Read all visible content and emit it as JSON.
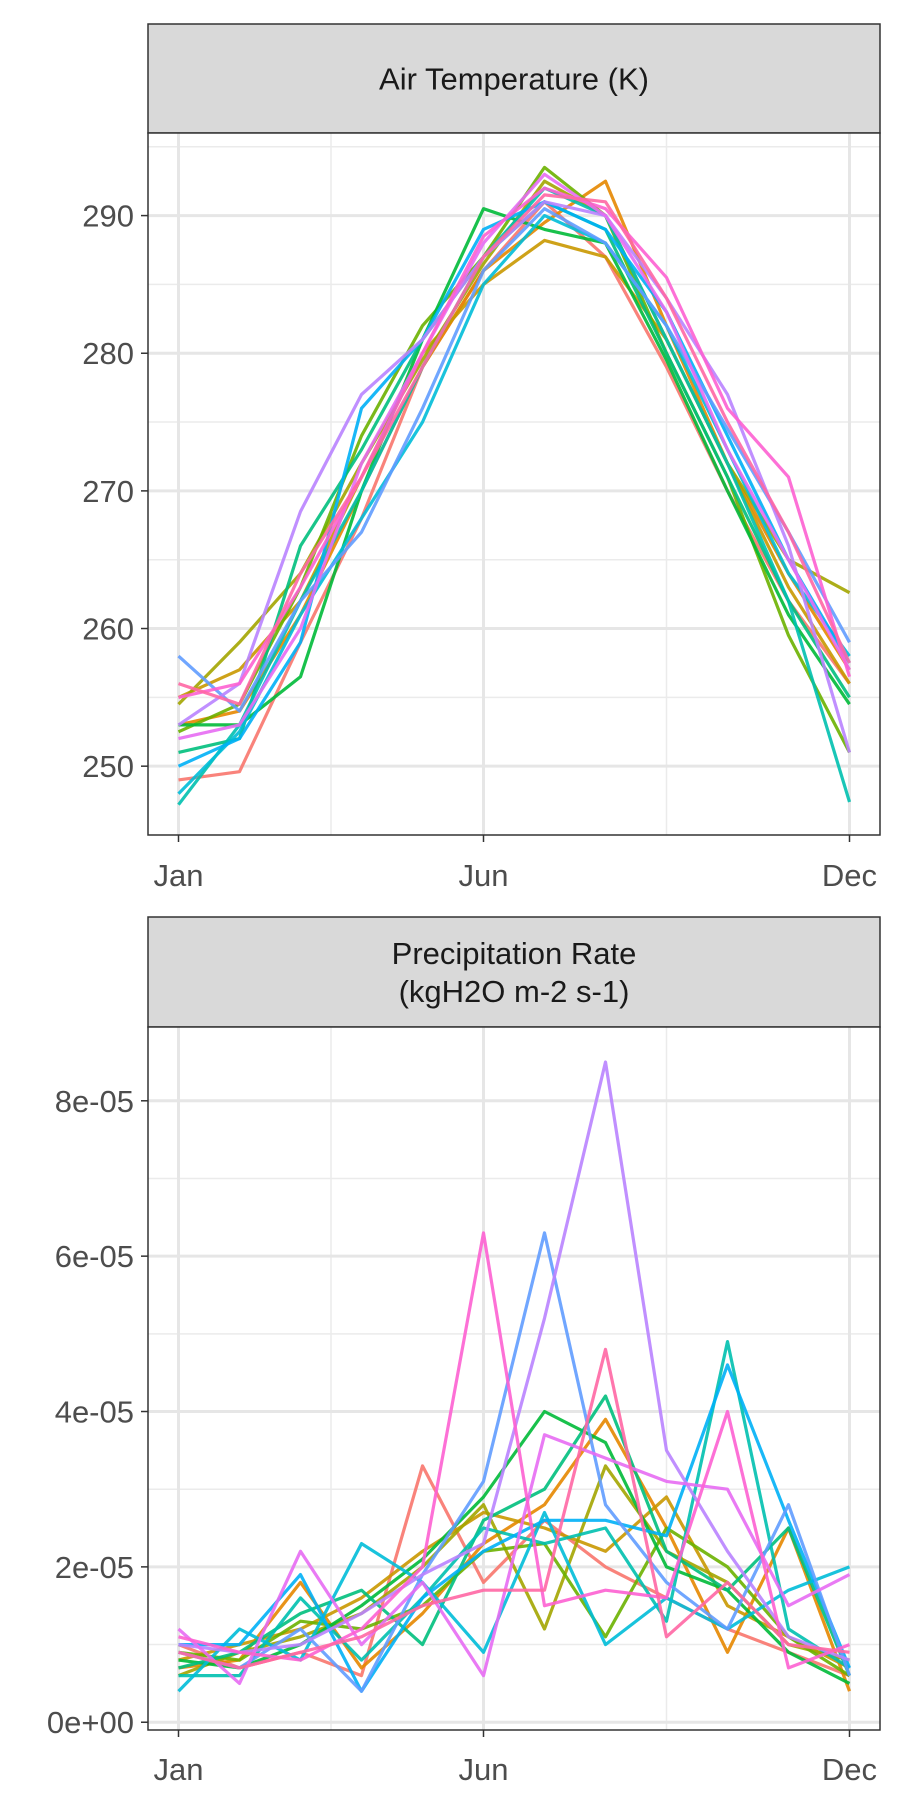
{
  "chart_data": [
    {
      "type": "line",
      "title": "Air Temperature (K)",
      "x": [
        1,
        2,
        3,
        4,
        5,
        6,
        7,
        8,
        9,
        10,
        11,
        12
      ],
      "x_ticks": [
        1,
        6,
        12
      ],
      "x_tick_labels": [
        "Jan",
        "Jun",
        "Dec"
      ],
      "xlim": [
        0.5,
        12.5
      ],
      "ylim": [
        245,
        296
      ],
      "y_ticks": [
        250,
        260,
        270,
        280,
        290
      ],
      "y_tick_labels": [
        "250",
        "260",
        "270",
        "280",
        "290"
      ],
      "grid": true,
      "legend": "none",
      "series": [
        {
          "color": "#F8766D",
          "values": [
            249.0,
            249.6,
            259.0,
            268.0,
            279.0,
            286.0,
            291.0,
            287.0,
            279.0,
            270.0,
            262.0,
            256.0
          ]
        },
        {
          "color": "#E58700",
          "values": [
            253.0,
            254.0,
            261.0,
            270.0,
            279.0,
            286.0,
            289.5,
            292.5,
            282.0,
            272.0,
            264.0,
            257.0
          ]
        },
        {
          "color": "#C99800",
          "values": [
            255.0,
            257.0,
            262.0,
            271.0,
            280.0,
            285.0,
            288.2,
            287.0,
            281.0,
            272.0,
            263.0,
            256.0
          ]
        },
        {
          "color": "#A3A500",
          "values": [
            254.5,
            259.0,
            264.0,
            272.0,
            279.5,
            286.5,
            292.5,
            290.0,
            281.0,
            272.0,
            265.0,
            262.6
          ]
        },
        {
          "color": "#6BB100",
          "values": [
            252.5,
            254.5,
            263.0,
            274.0,
            282.0,
            287.0,
            293.5,
            290.0,
            280.0,
            271.0,
            259.5,
            251.0
          ]
        },
        {
          "color": "#00BA38",
          "values": [
            253.0,
            253.0,
            256.5,
            270.0,
            281.0,
            290.5,
            289.0,
            288.0,
            279.5,
            270.0,
            261.0,
            254.5
          ]
        },
        {
          "color": "#00BF7D",
          "values": [
            251.0,
            252.0,
            266.0,
            273.0,
            281.0,
            287.0,
            291.0,
            289.0,
            280.0,
            271.0,
            262.0,
            255.0
          ]
        },
        {
          "color": "#00C0AF",
          "values": [
            247.2,
            253.0,
            262.0,
            270.0,
            279.0,
            287.0,
            292.0,
            290.0,
            281.0,
            272.0,
            262.0,
            247.4
          ]
        },
        {
          "color": "#00BCD8",
          "values": [
            248.0,
            252.5,
            261.0,
            268.0,
            275.0,
            285.0,
            290.0,
            288.0,
            282.0,
            273.0,
            264.0,
            258.0
          ]
        },
        {
          "color": "#00B0F6",
          "values": [
            250.0,
            252.0,
            259.0,
            276.0,
            281.0,
            289.0,
            291.0,
            289.0,
            283.0,
            274.0,
            265.0,
            257.5
          ]
        },
        {
          "color": "#619CFF",
          "values": [
            258.0,
            254.0,
            262.0,
            267.0,
            276.0,
            286.0,
            290.5,
            288.0,
            282.0,
            274.5,
            267.0,
            259.0
          ]
        },
        {
          "color": "#B983FF",
          "values": [
            253.0,
            256.0,
            268.5,
            277.0,
            281.0,
            287.0,
            291.0,
            290.0,
            284.0,
            277.0,
            266.0,
            251.0
          ]
        },
        {
          "color": "#E76BF3",
          "values": [
            252.0,
            253.0,
            260.0,
            272.0,
            280.0,
            288.0,
            293.0,
            290.0,
            283.0,
            273.0,
            265.0,
            257.0
          ]
        },
        {
          "color": "#FD61D1",
          "values": [
            255.0,
            256.0,
            263.0,
            271.0,
            280.0,
            288.5,
            292.0,
            290.5,
            285.5,
            276.0,
            271.0,
            256.5
          ]
        },
        {
          "color": "#FF67A4",
          "values": [
            256.0,
            254.5,
            264.0,
            271.0,
            279.0,
            287.0,
            291.5,
            291.0,
            284.0,
            275.0,
            267.0,
            257.5
          ]
        }
      ]
    },
    {
      "type": "line",
      "title": "Precipitation Rate\n(kgH2O m-2 s-1)",
      "title_lines": [
        "Precipitation Rate",
        "(kgH2O m-2 s-1)"
      ],
      "x": [
        1,
        2,
        3,
        4,
        5,
        6,
        7,
        8,
        9,
        10,
        11,
        12
      ],
      "x_ticks": [
        1,
        6,
        12
      ],
      "x_tick_labels": [
        "Jan",
        "Jun",
        "Dec"
      ],
      "xlim": [
        0.5,
        12.5
      ],
      "ylim": [
        -1e-06,
        8.95e-05
      ],
      "y_ticks": [
        0,
        2e-05,
        4e-05,
        6e-05,
        8e-05
      ],
      "y_tick_labels": [
        "0e+00",
        "2e-05",
        "4e-05",
        "6e-05",
        "8e-05"
      ],
      "grid": true,
      "legend": "none",
      "series": [
        {
          "color": "#F8766D",
          "values": [
            1e-05,
            7e-06,
            9e-06,
            6e-06,
            3.3e-05,
            1.8e-05,
            2.6e-05,
            2e-05,
            1.6e-05,
            1.2e-05,
            9e-06,
            6e-06
          ]
        },
        {
          "color": "#E58700",
          "values": [
            7e-06,
            8e-06,
            1.8e-05,
            7e-06,
            1.4e-05,
            2.3e-05,
            2.8e-05,
            3.9e-05,
            2.5e-05,
            9e-06,
            2.5e-05,
            4e-06
          ]
        },
        {
          "color": "#C99800",
          "values": [
            8e-06,
            1e-05,
            1.2e-05,
            1.6e-05,
            2.2e-05,
            2.7e-05,
            2.5e-05,
            2.2e-05,
            2.9e-05,
            1.5e-05,
            1.1e-05,
            7e-06
          ]
        },
        {
          "color": "#A3A500",
          "values": [
            6e-06,
            9e-06,
            1.1e-05,
            1.4e-05,
            2e-05,
            2.8e-05,
            1.2e-05,
            3.3e-05,
            2.2e-05,
            1.8e-05,
            1e-05,
            8e-06
          ]
        },
        {
          "color": "#6BB100",
          "values": [
            9e-06,
            8e-06,
            1.3e-05,
            1.2e-05,
            1.5e-05,
            2.2e-05,
            2.3e-05,
            1.1e-05,
            2.5e-05,
            2e-05,
            1.1e-05,
            6e-06
          ]
        },
        {
          "color": "#00BA38",
          "values": [
            8e-06,
            7e-06,
            1e-05,
            1.5e-05,
            2.1e-05,
            2.9e-05,
            4e-05,
            3.6e-05,
            2e-05,
            1.7e-05,
            9e-06,
            5e-06
          ]
        },
        {
          "color": "#00BF7D",
          "values": [
            7e-06,
            9e-06,
            1.4e-05,
            1.7e-05,
            1e-05,
            2.6e-05,
            3e-05,
            4.2e-05,
            2.2e-05,
            1.7e-05,
            2.5e-05,
            6e-06
          ]
        },
        {
          "color": "#00C0AF",
          "values": [
            6e-06,
            6e-06,
            1.6e-05,
            8e-06,
            1.6e-05,
            2.5e-05,
            2.3e-05,
            2.5e-05,
            1.3e-05,
            4.9e-05,
            1.2e-05,
            7e-06
          ]
        },
        {
          "color": "#00BCD8",
          "values": [
            4e-06,
            1.2e-05,
            8e-06,
            2.3e-05,
            1.8e-05,
            9e-06,
            2.7e-05,
            1e-05,
            1.6e-05,
            1.2e-05,
            1.7e-05,
            2e-05
          ]
        },
        {
          "color": "#00B0F6",
          "values": [
            1e-05,
            1e-05,
            1.9e-05,
            4e-06,
            1.6e-05,
            2.2e-05,
            2.6e-05,
            2.6e-05,
            2.4e-05,
            4.6e-05,
            2.6e-05,
            7e-06
          ]
        },
        {
          "color": "#619CFF",
          "values": [
            9e-06,
            7e-06,
            1.2e-05,
            4e-06,
            1.9e-05,
            3.1e-05,
            6.3e-05,
            2.8e-05,
            1.8e-05,
            1.2e-05,
            2.8e-05,
            6e-06
          ]
        },
        {
          "color": "#B983FF",
          "values": [
            1e-05,
            9e-06,
            1e-05,
            1.4e-05,
            1.9e-05,
            2.3e-05,
            5.2e-05,
            8.5e-05,
            3.5e-05,
            2.2e-05,
            1.1e-05,
            8e-06
          ]
        },
        {
          "color": "#E76BF3",
          "values": [
            1.2e-05,
            5e-06,
            2.2e-05,
            1e-05,
            1.8e-05,
            6e-06,
            3.7e-05,
            3.4e-05,
            3.1e-05,
            3e-05,
            1.5e-05,
            1.9e-05
          ]
        },
        {
          "color": "#FD61D1",
          "values": [
            1.1e-05,
            9e-06,
            8e-06,
            1.2e-05,
            2e-05,
            6.3e-05,
            1.5e-05,
            1.7e-05,
            1.6e-05,
            4e-05,
            7e-06,
            1e-05
          ]
        },
        {
          "color": "#FF67A4",
          "values": [
            9e-06,
            7e-06,
            9e-06,
            1.1e-05,
            1.5e-05,
            1.7e-05,
            1.7e-05,
            4.8e-05,
            1.1e-05,
            1.8e-05,
            1e-05,
            9e-06
          ]
        }
      ]
    }
  ]
}
